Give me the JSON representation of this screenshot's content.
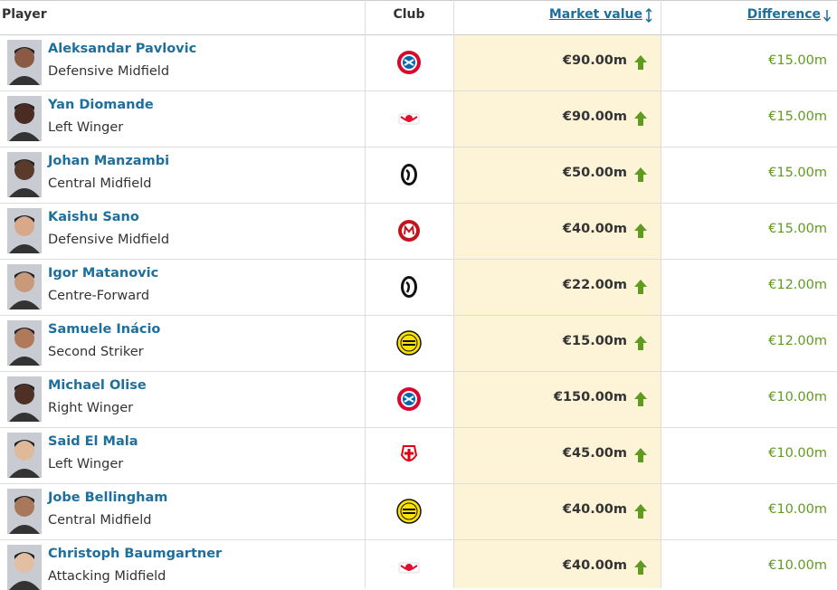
{
  "header": {
    "player": "Player",
    "club": "Club",
    "market_value": "Market value",
    "difference": "Difference"
  },
  "table": {
    "rows": [
      {
        "name": "Aleksandar Pavlovic",
        "position": "Defensive Midfield",
        "market_value": "€90.00m",
        "difference": "€15.00m"
      },
      {
        "name": "Yan Diomande",
        "position": "Left Winger",
        "market_value": "€90.00m",
        "difference": "€15.00m"
      },
      {
        "name": "Johan Manzambi",
        "position": "Central Midfield",
        "market_value": "€50.00m",
        "difference": "€15.00m"
      },
      {
        "name": "Kaishu Sano",
        "position": "Defensive Midfield",
        "market_value": "€40.00m",
        "difference": "€15.00m"
      },
      {
        "name": "Igor Matanovic",
        "position": "Centre-Forward",
        "market_value": "€22.00m",
        "difference": "€12.00m"
      },
      {
        "name": "Samuele Inácio",
        "position": "Second Striker",
        "market_value": "€15.00m",
        "difference": "€12.00m"
      },
      {
        "name": "Michael Olise",
        "position": "Right Winger",
        "market_value": "€150.00m",
        "difference": "€10.00m"
      },
      {
        "name": "Said El Mala",
        "position": "Left Winger",
        "market_value": "€45.00m",
        "difference": "€10.00m"
      },
      {
        "name": "Jobe Bellingham",
        "position": "Central Midfield",
        "market_value": "€40.00m",
        "difference": "€10.00m"
      },
      {
        "name": "Christoph Baumgartner",
        "position": "Attacking Midfield",
        "market_value": "€40.00m",
        "difference": "€10.00m"
      }
    ]
  }
}
